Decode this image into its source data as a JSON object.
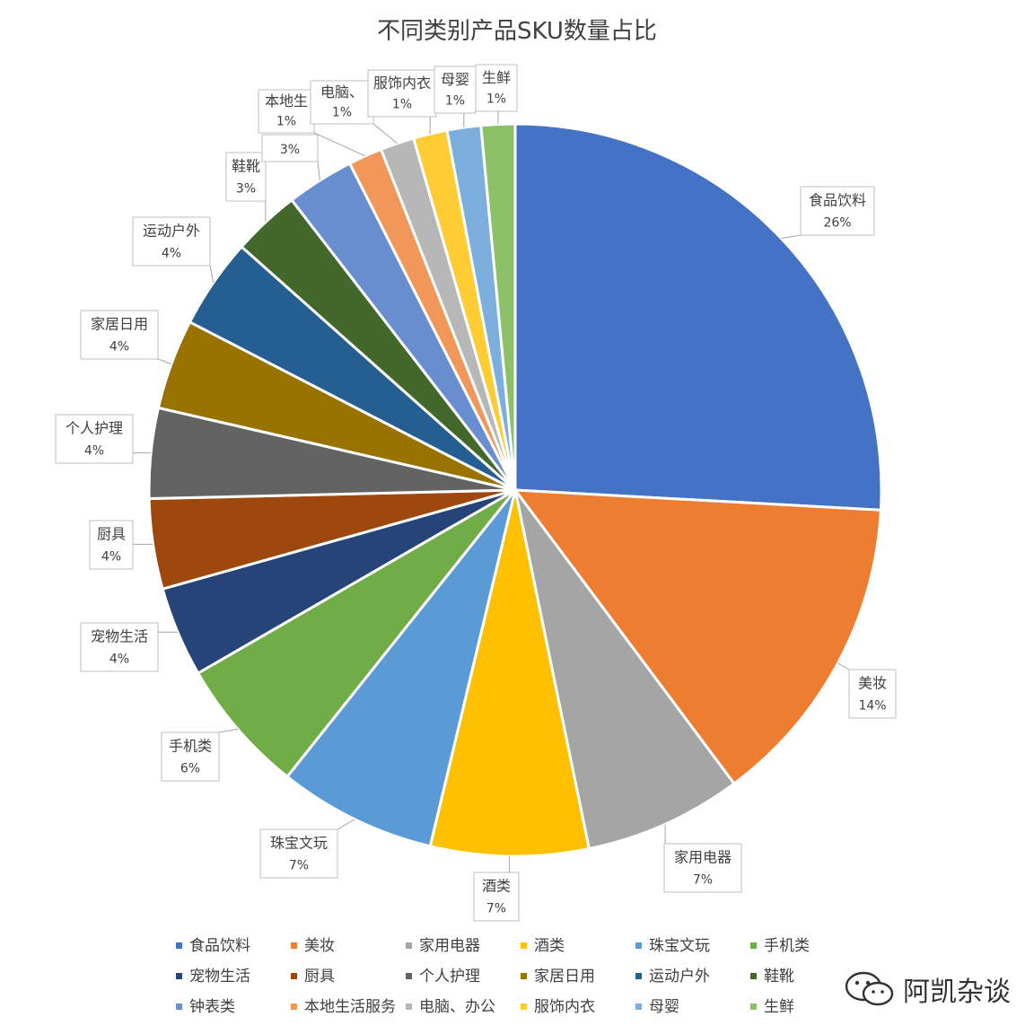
{
  "chart_data": {
    "type": "pie",
    "title": "不同类别产品SKU数量占比",
    "slices": [
      {
        "label": "食品饮料",
        "value": 26,
        "pct_label": "26%",
        "color": "#4472C4"
      },
      {
        "label": "美妆",
        "value": 14,
        "pct_label": "14%",
        "color": "#ED7D31"
      },
      {
        "label": "家用电器",
        "value": 7,
        "pct_label": "7%",
        "color": "#A5A5A5"
      },
      {
        "label": "酒类",
        "value": 7,
        "pct_label": "7%",
        "color": "#FFC000"
      },
      {
        "label": "珠宝文玩",
        "value": 7,
        "pct_label": "7%",
        "color": "#5B9BD5"
      },
      {
        "label": "手机类",
        "value": 6,
        "pct_label": "6%",
        "color": "#70AD47"
      },
      {
        "label": "宠物生活",
        "value": 4,
        "pct_label": "4%",
        "color": "#264478"
      },
      {
        "label": "厨具",
        "value": 4,
        "pct_label": "4%",
        "color": "#9E480E"
      },
      {
        "label": "个人护理",
        "value": 4,
        "pct_label": "4%",
        "color": "#636363"
      },
      {
        "label": "家居日用",
        "value": 4,
        "pct_label": "4%",
        "color": "#997300"
      },
      {
        "label": "运动户外",
        "value": 4,
        "pct_label": "4%",
        "color": "#255E91"
      },
      {
        "label": "鞋靴",
        "value": 3,
        "pct_label": "3%",
        "color": "#43682B"
      },
      {
        "label": "钟表类",
        "value": 3,
        "pct_label": "3%",
        "color": "#698ED0"
      },
      {
        "label": "本地生活服务",
        "value": 1.5,
        "pct_label": "1%",
        "color": "#F1975A"
      },
      {
        "label": "电脑、办公",
        "value": 1.5,
        "pct_label": "1%",
        "color": "#B7B7B7"
      },
      {
        "label": "服饰内衣",
        "value": 1.5,
        "pct_label": "1%",
        "color": "#FFCD33"
      },
      {
        "label": "母婴",
        "value": 1.5,
        "pct_label": "1%",
        "color": "#7CAFDD"
      },
      {
        "label": "生鲜",
        "value": 1.5,
        "pct_label": "1%",
        "color": "#8CC168"
      }
    ],
    "callout_labels": [
      {
        "slice": "食品饮料",
        "name": "食品饮料",
        "pct": "26%"
      },
      {
        "slice": "美妆",
        "name": "美妆",
        "pct": "14%"
      },
      {
        "slice": "家用电器",
        "name": "家用电器",
        "pct": "7%"
      },
      {
        "slice": "酒类",
        "name": "酒类",
        "pct": "7%"
      },
      {
        "slice": "珠宝文玩",
        "name": "珠宝文玩",
        "pct": "7%"
      },
      {
        "slice": "手机类",
        "name": "手机类",
        "pct": "6%"
      },
      {
        "slice": "宠物生活",
        "name": "宠物生活",
        "pct": "4%"
      },
      {
        "slice": "厨具",
        "name": "厨具",
        "pct": "4%"
      },
      {
        "slice": "个人护理",
        "name": "个人护理",
        "pct": "4%"
      },
      {
        "slice": "家居日用",
        "name": "家居日用",
        "pct": "4%"
      },
      {
        "slice": "运动户外",
        "name": "运动户外",
        "pct": "4%"
      },
      {
        "slice": "鞋靴",
        "name": "鞋靴",
        "pct": "3%"
      },
      {
        "slice": "钟表类",
        "name": "",
        "pct": "3%"
      },
      {
        "slice": "本地生活服务",
        "name": "本地生",
        "pct": "1%"
      },
      {
        "slice": "电脑、办公",
        "name": "电脑、",
        "pct": "1%"
      },
      {
        "slice": "服饰内衣",
        "name": "服饰内衣",
        "pct": "1%"
      },
      {
        "slice": "母婴",
        "name": "母婴",
        "pct": "1%"
      },
      {
        "slice": "生鲜",
        "name": "生鲜",
        "pct": "1%"
      }
    ],
    "legend_placement": "bottom",
    "legend": [
      "食品饮料",
      "美妆",
      "家用电器",
      "酒类",
      "珠宝文玩",
      "手机类",
      "宠物生活",
      "厨具",
      "个人护理",
      "家居日用",
      "运动户外",
      "鞋靴",
      "钟表类",
      "本地生活服务",
      "电脑、办公",
      "服饰内衣",
      "母婴",
      "生鲜"
    ]
  },
  "watermark": {
    "text": "阿凯杂谈",
    "icon": "wechat-icon"
  }
}
